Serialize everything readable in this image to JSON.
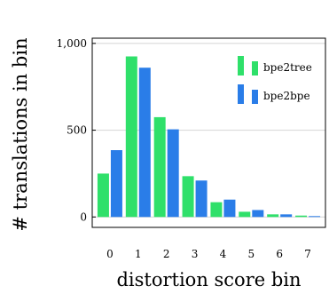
{
  "chart_data": {
    "type": "bar",
    "xlabel": "distortion score bin",
    "ylabel": "# translations in bin",
    "categories": [
      "0",
      "1",
      "2",
      "3",
      "4",
      "5",
      "6",
      "7"
    ],
    "yticks": [
      0,
      500,
      1000
    ],
    "ytick_labels": [
      "0",
      "500",
      "1,000"
    ],
    "ylim": [
      -60,
      1030
    ],
    "grid": "horizontal",
    "legend_position": "top-right",
    "series": [
      {
        "name": "bpe2tree",
        "color": "#2fe06a",
        "values": [
          250,
          925,
          575,
          235,
          85,
          30,
          15,
          8
        ]
      },
      {
        "name": "bpe2bpe",
        "color": "#2a7de8",
        "values": [
          385,
          860,
          505,
          210,
          100,
          40,
          15,
          5
        ]
      }
    ]
  }
}
